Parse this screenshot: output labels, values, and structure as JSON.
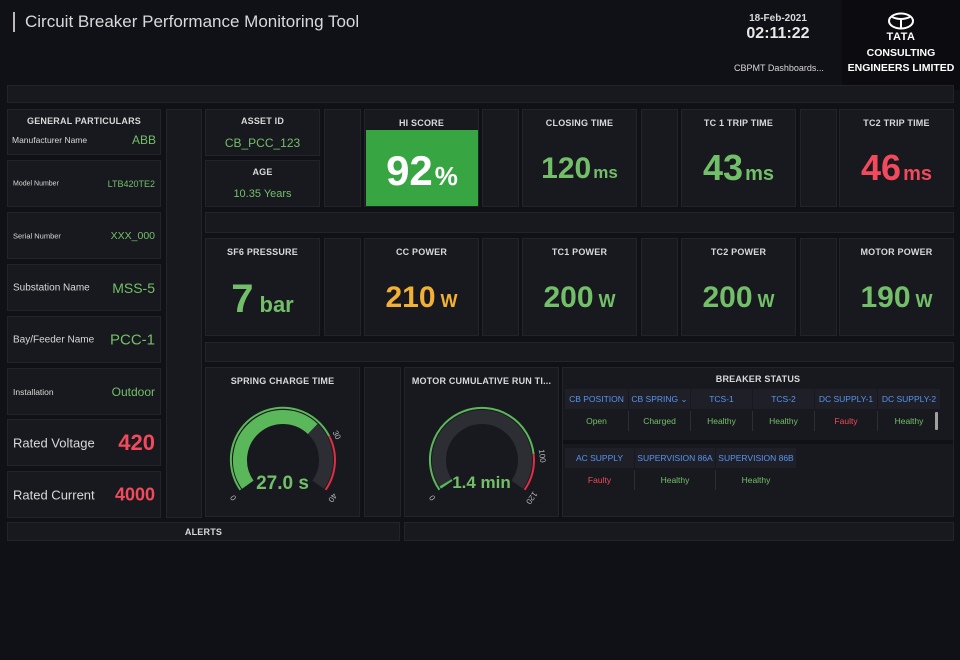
{
  "header": {
    "title": "Circuit Breaker Performance Monitoring Tool",
    "date": "18-Feb-2021",
    "time": "02:11:22",
    "dashboards_link": "CBPMT Dashboards...",
    "logo_line1": "TATA",
    "logo_line2": "CONSULTING",
    "logo_line3": "ENGINEERS LIMITED"
  },
  "general": {
    "title": "GENERAL PARTICULARS",
    "rows": [
      {
        "label": "Manufacturer Name",
        "value": "ABB"
      },
      {
        "label": "Model Number",
        "value": "LTB420TE2"
      },
      {
        "label": "Serial Number",
        "value": "XXX_000"
      },
      {
        "label": "Substation Name",
        "value": "MSS-5"
      },
      {
        "label": "Bay/Feeder Name",
        "value": "PCC-1"
      },
      {
        "label": "Installation",
        "value": "Outdoor"
      },
      {
        "label": "Rated Voltage",
        "value": "420"
      },
      {
        "label": "Rated Current",
        "value": "4000"
      }
    ]
  },
  "asset": {
    "title": "ASSET ID",
    "value": "CB_PCC_123"
  },
  "age": {
    "title": "AGE",
    "value": "10.35 Years"
  },
  "hi_score": {
    "title": "HI SCORE",
    "value": "92",
    "unit": "%"
  },
  "closing_time": {
    "title": "CLOSING TIME",
    "value": "120",
    "unit": "ms"
  },
  "tc1_trip": {
    "title": "TC 1 TRIP TIME",
    "value": "43",
    "unit": "ms"
  },
  "tc2_trip": {
    "title": "TC2 TRIP TIME",
    "value": "46",
    "unit": "ms"
  },
  "sf6": {
    "title": "SF6 PRESSURE",
    "value": "7",
    "unit": "bar"
  },
  "cc_power": {
    "title": "CC POWER",
    "value": "210",
    "unit": "W"
  },
  "tc1_power": {
    "title": "TC1 POWER",
    "value": "200",
    "unit": "W"
  },
  "tc2_power": {
    "title": "TC2 POWER",
    "value": "200",
    "unit": "W"
  },
  "motor_power": {
    "title": "MOTOR POWER",
    "value": "190",
    "unit": "W"
  },
  "spring": {
    "title": "SPRING CHARGE TIME",
    "value": "27.0 s",
    "level": 27,
    "min": "0",
    "threshold": "30",
    "max": "40",
    "min_value": 0,
    "threshold_value": 30,
    "max_value": 40
  },
  "motor_run": {
    "title": "MOTOR CUMULATIVE RUN TI...",
    "value": "1.4 min",
    "level": 1.4,
    "min": "0",
    "threshold": "100",
    "max": "120",
    "min_value": 0,
    "threshold_value": 100,
    "max_value": 120
  },
  "breaker_status": {
    "title": "BREAKER STATUS",
    "row1_headers": [
      "CB POSITION",
      "CB SPRING ⌄",
      "TCS-1",
      "TCS-2",
      "DC SUPPLY-1",
      "DC SUPPLY-2"
    ],
    "row1_values": [
      "Open",
      "Charged",
      "Healthy",
      "Healthy",
      "Faulty",
      "Healthy"
    ],
    "row2_headers": [
      "AC SUPPLY",
      "SUPERVISION 86A",
      "SUPERVISION 86B"
    ],
    "row2_values": [
      "Faulty",
      "Healthy",
      "Healthy"
    ]
  },
  "alerts": {
    "title": "ALERTS"
  },
  "colors": {
    "green": "#73bf69",
    "red": "#f2495c",
    "orange": "#f2b035",
    "hi_bg": "#37a642",
    "header_blue": "#5794f2"
  }
}
